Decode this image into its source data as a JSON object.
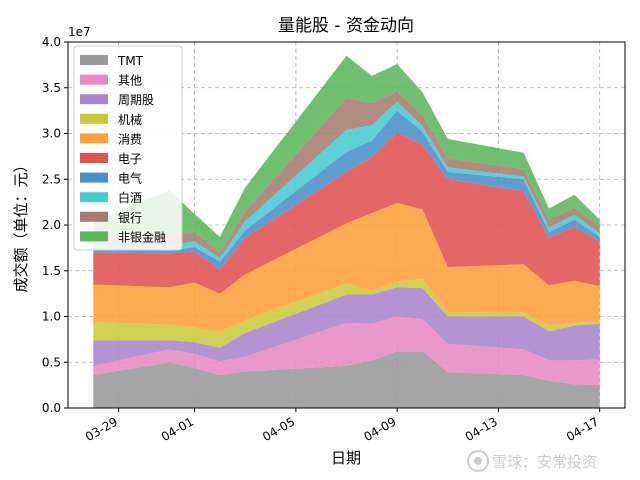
{
  "chart_data": {
    "type": "area",
    "stacked": true,
    "title": "量能股 - 资金动向",
    "xlabel": "日期",
    "ylabel": "成交额（单位：元）",
    "y_offset_label": "1e7",
    "ylim": [
      0,
      40000000.0
    ],
    "yticks": [
      0,
      5000000.0,
      10000000.0,
      15000000.0,
      20000000.0,
      25000000.0,
      30000000.0,
      35000000.0,
      40000000.0
    ],
    "ytick_labels": [
      "0.0",
      "0.5",
      "1.0",
      "1.5",
      "2.0",
      "2.5",
      "3.0",
      "3.5",
      "4.0"
    ],
    "xlim": [
      "2024-03-27",
      "2024-04-18"
    ],
    "x": [
      "2024-03-28",
      "2024-03-31",
      "2024-04-01",
      "2024-04-02",
      "2024-04-03",
      "2024-04-07",
      "2024-04-08",
      "2024-04-09",
      "2024-04-10",
      "2024-04-11",
      "2024-04-14",
      "2024-04-15",
      "2024-04-16",
      "2024-04-17"
    ],
    "xticks": [
      "2024-03-29",
      "2024-04-01",
      "2024-04-05",
      "2024-04-09",
      "2024-04-13",
      "2024-04-17"
    ],
    "xtick_labels": [
      "03-29",
      "04-01",
      "04-05",
      "04-09",
      "04-13",
      "04-17"
    ],
    "grid": true,
    "legend_position": "upper-left",
    "series": [
      {
        "name": "TMT",
        "color": "#999999",
        "values": [
          3600000.0,
          5000000.0,
          4400000.0,
          3600000.0,
          4000000.0,
          4600000.0,
          5200000.0,
          6200000.0,
          6200000.0,
          3900000.0,
          3600000.0,
          3000000.0,
          2600000.0,
          2500000.0
        ]
      },
      {
        "name": "其他",
        "color": "#e78ac3",
        "values": [
          1000000.0,
          1400000.0,
          1500000.0,
          1500000.0,
          1600000.0,
          4700000.0,
          4000000.0,
          3800000.0,
          3500000.0,
          3100000.0,
          2800000.0,
          2200000.0,
          2600000.0,
          2800000.0
        ]
      },
      {
        "name": "周期股",
        "color": "#a985ca",
        "values": [
          2800000.0,
          1000000.0,
          1300000.0,
          1500000.0,
          2600000.0,
          3100000.0,
          3200000.0,
          3200000.0,
          3400000.0,
          3000000.0,
          3600000.0,
          3200000.0,
          3800000.0,
          3900000.0
        ]
      },
      {
        "name": "机械",
        "color": "#c9c93c",
        "values": [
          2000000.0,
          1700000.0,
          1600000.0,
          1700000.0,
          1400000.0,
          1200000.0,
          400000.0,
          600000.0,
          1000000.0,
          500000.0,
          400000.0,
          600000.0,
          300000.0,
          300000.0
        ]
      },
      {
        "name": "消费",
        "color": "#ff9e3d",
        "values": [
          4100000.0,
          4100000.0,
          4900000.0,
          4200000.0,
          5000000.0,
          6600000.0,
          8500000.0,
          8600000.0,
          7600000.0,
          4900000.0,
          5300000.0,
          4400000.0,
          4600000.0,
          3800000.0
        ]
      },
      {
        "name": "电子",
        "color": "#e05252",
        "values": [
          3500000.0,
          3700000.0,
          3400000.0,
          2600000.0,
          4000000.0,
          5600000.0,
          6100000.0,
          7700000.0,
          7100000.0,
          9600000.0,
          8000000.0,
          5200000.0,
          5900000.0,
          4900000.0
        ]
      },
      {
        "name": "电气",
        "color": "#4a90c8",
        "values": [
          300000.0,
          300000.0,
          500000.0,
          900000.0,
          800000.0,
          2200000.0,
          1800000.0,
          2400000.0,
          1400000.0,
          800000.0,
          1300000.0,
          600000.0,
          800000.0,
          500000.0
        ]
      },
      {
        "name": "白酒",
        "color": "#47cbd1",
        "values": [
          500000.0,
          600000.0,
          600000.0,
          400000.0,
          1000000.0,
          2400000.0,
          1700000.0,
          1000000.0,
          600000.0,
          500000.0,
          300000.0,
          500000.0,
          500000.0,
          400000.0
        ]
      },
      {
        "name": "银行",
        "color": "#a67c70",
        "values": [
          1000000.0,
          1100000.0,
          1000000.0,
          600000.0,
          1100000.0,
          3500000.0,
          2400000.0,
          1100000.0,
          1200000.0,
          1000000.0,
          800000.0,
          900000.0,
          800000.0,
          700000.0
        ]
      },
      {
        "name": "非银金融",
        "color": "#5cb55c",
        "values": [
          1500000.0,
          4900000.0,
          2000000.0,
          1700000.0,
          2600000.0,
          4600000.0,
          3000000.0,
          3000000.0,
          2500000.0,
          2100000.0,
          1800000.0,
          1200000.0,
          1400000.0,
          800000.0
        ]
      }
    ]
  },
  "watermark": "雪球：安常投资"
}
